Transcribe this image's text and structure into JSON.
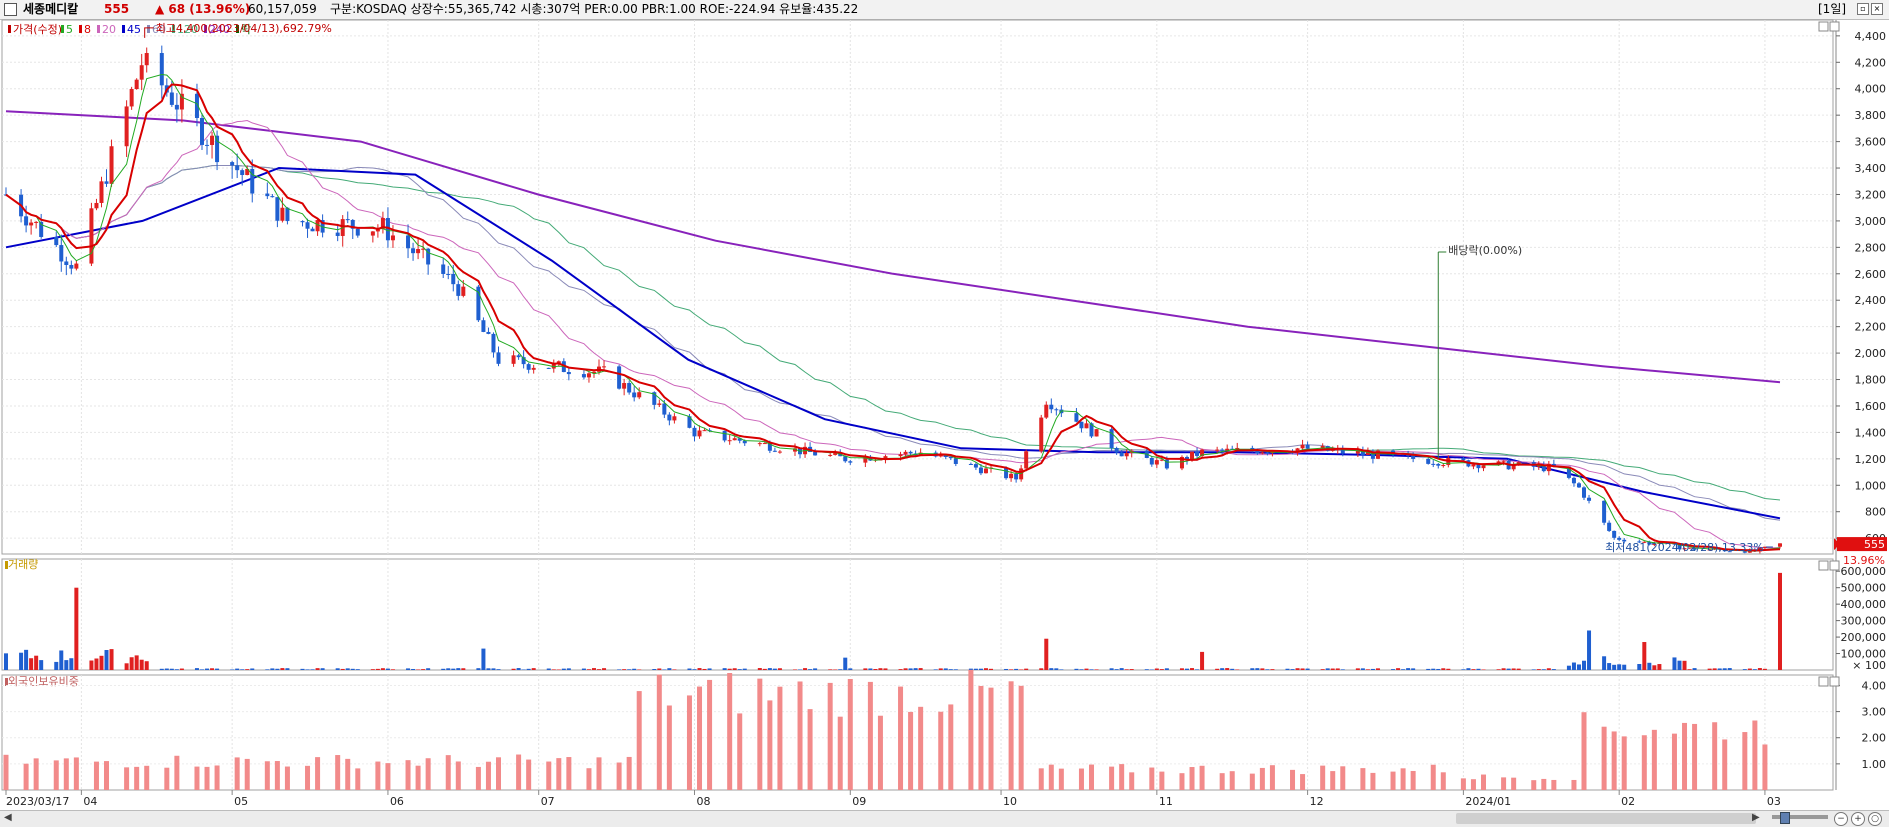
{
  "header": {
    "stock_name": "세종메디칼",
    "price": "555",
    "change_text": "▲ 68 (13.96%)",
    "market_value": "60,157,059",
    "meta_text": "구분:KOSDAQ 상장수:55,365,742 시총:307억 PER:0.00 PBR:1.00 ROE:-224.94 유보율:435.22",
    "period": "[1일]"
  },
  "legend": {
    "price_label": "가격(수정)",
    "ma_labels": [
      "5",
      "8",
      "20",
      "45",
      "60",
      "120",
      "240"
    ],
    "ex_label": "락"
  },
  "panels": {
    "volume_title": "거래량",
    "foreign_title": "외국인보유비중"
  },
  "annotations": {
    "high": "최고4,400(2023/04/13),692.79%",
    "low": "최저481(2024/02/28),13.33%",
    "dividend": "배당락(0.00%)",
    "last_pct": "13.96%",
    "last_price": "555"
  },
  "colors": {
    "up": "#e02020",
    "down": "#1f5fd0",
    "ma5": "#22aa22",
    "ma8": "#d80000",
    "ma20": "#cc66bb",
    "ma45": "#0000c8",
    "ma60": "#8a8ab8",
    "ma120": "#44aa77",
    "ma240": "#8822bb",
    "foreign_bar": "#f28a8a"
  },
  "chart_data": [
    {
      "type": "candlestick",
      "title": "가격(수정)",
      "y_ticks": [
        "4,400",
        "4,200",
        "4,000",
        "3,800",
        "3,600",
        "3,400",
        "3,200",
        "3,000",
        "2,800",
        "2,600",
        "2,400",
        "2,200",
        "2,000",
        "1,800",
        "1,600",
        "1,400",
        "1,200",
        "1,000",
        "800",
        "600"
      ],
      "ylim": [
        480,
        4520
      ],
      "x_ticks": [
        "2023/03/17",
        "04",
        "05",
        "06",
        "07",
        "08",
        "09",
        "10",
        "11",
        "12",
        "2024/01",
        "02",
        "03"
      ],
      "anchors": [
        {
          "date": "2023/03/17",
          "close": 3200
        },
        {
          "date": "2023/03/31",
          "close": 2650
        },
        {
          "date": "2023/04/13",
          "close": 4200
        },
        {
          "date": "2023/04/28",
          "close": 3550
        },
        {
          "date": "2023/05/12",
          "close": 3000
        },
        {
          "date": "2023/05/31",
          "close": 2950
        },
        {
          "date": "2023/06/15",
          "close": 2500
        },
        {
          "date": "2023/06/23",
          "close": 1950
        },
        {
          "date": "2023/07/14",
          "close": 1850
        },
        {
          "date": "2023/08/01",
          "close": 1400
        },
        {
          "date": "2023/08/31",
          "close": 1200
        },
        {
          "date": "2023/09/15",
          "close": 1250
        },
        {
          "date": "2023/10/04",
          "close": 1050
        },
        {
          "date": "2023/10/10",
          "close": 1650
        },
        {
          "date": "2023/10/25",
          "close": 1250
        },
        {
          "date": "2023/11/03",
          "close": 1150
        },
        {
          "date": "2023/11/10",
          "close": 1250
        },
        {
          "date": "2023/11/30",
          "close": 1280
        },
        {
          "date": "2023/12/28",
          "close": 1180
        },
        {
          "date": "2024/01/19",
          "close": 1130
        },
        {
          "date": "2024/01/24",
          "close": 980
        },
        {
          "date": "2024/01/31",
          "close": 600
        },
        {
          "date": "2024/02/15",
          "close": 520
        },
        {
          "date": "2024/02/28",
          "close": 500
        },
        {
          "date": "2024/03/04",
          "close": 555
        }
      ],
      "high": {
        "date": "2023/04/13",
        "value": 4400
      },
      "low": {
        "date": "2024/02/28",
        "value": 481
      },
      "last": 555,
      "moving_averages": {
        "ma240": [
          3830,
          3760,
          3600,
          3200,
          2850,
          2600,
          2400,
          2200,
          2050,
          1900,
          1780
        ],
        "ma45": [
          2800,
          3000,
          3400,
          3350,
          2700,
          1950,
          1500,
          1280,
          1250,
          1250,
          1230,
          1200,
          950,
          750
        ]
      }
    },
    {
      "type": "bar",
      "title": "거래량",
      "y_ticks": [
        "600,000",
        "500,000",
        "400,000",
        "300,000",
        "200,000",
        "100,000",
        "× 100"
      ],
      "ylim": [
        0,
        650000
      ],
      "spikes": [
        {
          "date": "2023/03/31",
          "value": 500000
        },
        {
          "date": "2023/06/20",
          "value": 130000
        },
        {
          "date": "2023/08/31",
          "value": 75000
        },
        {
          "date": "2023/10/10",
          "value": 190000
        },
        {
          "date": "2023/11/10",
          "value": 110000
        },
        {
          "date": "2024/01/26",
          "value": 240000
        },
        {
          "date": "2024/02/06",
          "value": 170000
        },
        {
          "date": "2024/03/04",
          "value": 590000
        }
      ]
    },
    {
      "type": "bar",
      "title": "외국인보유비중",
      "y_ticks": [
        "4.00",
        "3.00",
        "2.00",
        "1.00"
      ],
      "ylim": [
        0,
        4.4
      ],
      "profile": [
        {
          "range": "2023/03-2023/07",
          "value": 1.1
        },
        {
          "range": "2023/08-2023/09",
          "value": 3.7
        },
        {
          "range": "2023/10-2023/12",
          "value": 0.8
        },
        {
          "range": "2024/01",
          "value": 0.5
        },
        {
          "range": "2024/02",
          "value": 2.4
        },
        {
          "range": "2024/03",
          "value": 2.2
        }
      ]
    }
  ]
}
